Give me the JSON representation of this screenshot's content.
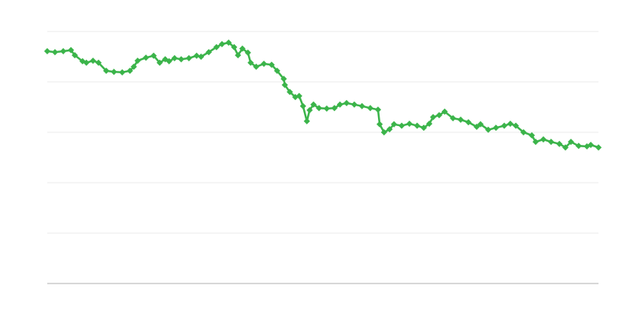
{
  "chart_data": {
    "type": "line",
    "title": "",
    "xlabel": "",
    "ylabel": "",
    "xlim": [
      0,
      100
    ],
    "ylim": [
      0,
      5
    ],
    "grid": true,
    "legend": "none",
    "marker": "diamond",
    "color": "#3bb44a",
    "series": [
      {
        "x": [
          0,
          1.4,
          2.9,
          4.3,
          5,
          6.4,
          7.1,
          8.3,
          9.3,
          10.7,
          12.1,
          13.6,
          15,
          15.7,
          16.4,
          17.9,
          19.3,
          20.4,
          21.4,
          22.1,
          23.1,
          24.3,
          25.7,
          27.1,
          27.9,
          29.3,
          30.7,
          31.7,
          32.9,
          33.9,
          34.6,
          35.4,
          36.4,
          36.9,
          37.9,
          39.3,
          40.7,
          41.7,
          42.9,
          43.1,
          44,
          45,
          45.7,
          46.4,
          47.1,
          47.6,
          48.3,
          49.3,
          50.7,
          52.1,
          53.1,
          54.3,
          55.7,
          57.1,
          58.6,
          60,
          60.3,
          61.1,
          62.1,
          62.9,
          64.3,
          65.7,
          67.1,
          68.3,
          69.3,
          70,
          71.1,
          72.1,
          73.6,
          75,
          76.4,
          77.9,
          78.6,
          80,
          81.4,
          82.9,
          84,
          85,
          86.4,
          87.9,
          88.6,
          90,
          91.4,
          92.9,
          94,
          95,
          96.4,
          97.9,
          98.6,
          100
        ],
        "y": [
          4.61,
          4.59,
          4.61,
          4.63,
          4.53,
          4.41,
          4.38,
          4.42,
          4.38,
          4.22,
          4.2,
          4.19,
          4.22,
          4.3,
          4.42,
          4.48,
          4.52,
          4.38,
          4.45,
          4.41,
          4.47,
          4.45,
          4.47,
          4.52,
          4.5,
          4.59,
          4.69,
          4.75,
          4.78,
          4.69,
          4.53,
          4.66,
          4.58,
          4.38,
          4.3,
          4.36,
          4.34,
          4.22,
          4.06,
          3.94,
          3.8,
          3.7,
          3.72,
          3.52,
          3.22,
          3.44,
          3.55,
          3.48,
          3.47,
          3.48,
          3.55,
          3.58,
          3.55,
          3.52,
          3.48,
          3.45,
          3.16,
          3.0,
          3.06,
          3.16,
          3.13,
          3.17,
          3.13,
          3.09,
          3.17,
          3.3,
          3.34,
          3.41,
          3.28,
          3.25,
          3.2,
          3.11,
          3.16,
          3.05,
          3.09,
          3.13,
          3.17,
          3.13,
          3.0,
          2.94,
          2.81,
          2.86,
          2.81,
          2.77,
          2.7,
          2.81,
          2.73,
          2.72,
          2.75,
          2.7
        ]
      }
    ]
  }
}
